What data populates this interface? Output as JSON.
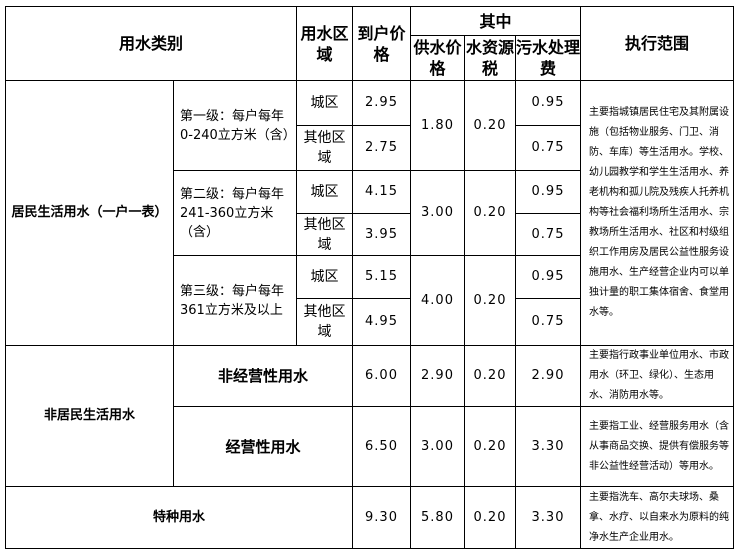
{
  "headers": {
    "category": "用水类别",
    "area": "用水区域",
    "price": "到户价格",
    "of_which": "其中",
    "supply": "供水价格",
    "resource_tax": "水资源税",
    "sewage": "污水处理费",
    "scope": "执行范围"
  },
  "resident": {
    "label": "居民生活用水（一户一表）",
    "levels": [
      {
        "label": "第一级：每户每年0-240立方米（含）",
        "supply": "1.80",
        "tax": "0.20",
        "rows": [
          {
            "area": "城区",
            "price": "2.95",
            "sewage": "0.95"
          },
          {
            "area": "其他区域",
            "price": "2.75",
            "sewage": "0.75"
          }
        ]
      },
      {
        "label": "第二级：每户每年 241-360立方米（含）",
        "supply": "3.00",
        "tax": "0.20",
        "rows": [
          {
            "area": "城区",
            "price": "4.15",
            "sewage": "0.95"
          },
          {
            "area": "其他区域",
            "price": "3.95",
            "sewage": "0.75"
          }
        ]
      },
      {
        "label": "第三级：每户每年361立方米及以上",
        "supply": "4.00",
        "tax": "0.20",
        "rows": [
          {
            "area": "城区",
            "price": "5.15",
            "sewage": "0.95"
          },
          {
            "area": "其他区域",
            "price": "4.95",
            "sewage": "0.75"
          }
        ]
      }
    ],
    "scope": "主要指城镇居民住宅及其附属设施（包括物业服务、门卫、消防、车库）等生活用水。学校、幼儿园教学和学生生活用水、养老机构和孤儿院及残疾人托养机构等社会福利场所生活用水、宗教场所生活用水、社区和村级组织工作用房及居民公益性服务设施用水、生产经营企业内可以单独计量的职工集体宿舍、食堂用水等。"
  },
  "non_resident": {
    "label": "非居民生活用水",
    "rows": [
      {
        "label": "非经营性用水",
        "price": "6.00",
        "supply": "2.90",
        "tax": "0.20",
        "sewage": "2.90",
        "scope": "主要指行政事业单位用水、市政用水（环卫、绿化）、生态用水、消防用水等。"
      },
      {
        "label": "经营性用水",
        "price": "6.50",
        "supply": "3.00",
        "tax": "0.20",
        "sewage": "3.30",
        "scope": "主要指工业、经营服务用水（含从事商品交换、提供有偿服务等非公益性经营活动）等用水。"
      }
    ]
  },
  "special": {
    "label": "特种用水",
    "price": "9.30",
    "supply": "5.80",
    "tax": "0.20",
    "sewage": "3.30",
    "scope": "主要指洗车、高尔夫球场、桑拿、水疗、以自来水为原料的纯净水生产企业用水。"
  }
}
